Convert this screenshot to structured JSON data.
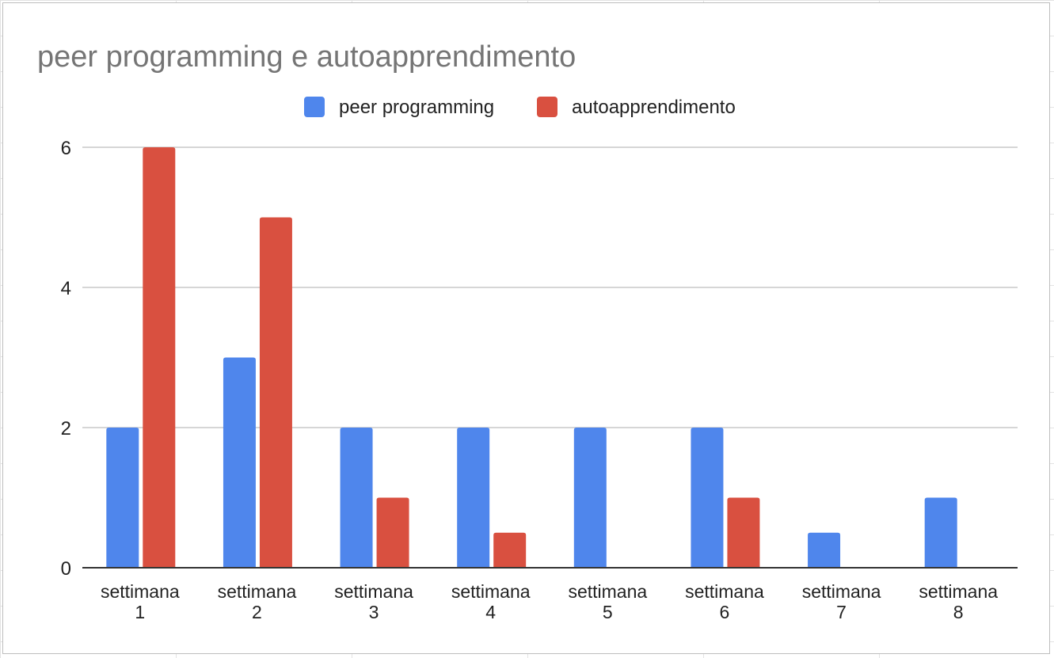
{
  "chart_data": {
    "type": "bar",
    "title": "peer programming e autoapprendimento",
    "xlabel": "",
    "ylabel": "",
    "categories": [
      [
        "settimana",
        "1"
      ],
      [
        "settimana",
        "2"
      ],
      [
        "settimana",
        "3"
      ],
      [
        "settimana",
        "4"
      ],
      [
        "settimana",
        "5"
      ],
      [
        "settimana",
        "6"
      ],
      [
        "settimana",
        "7"
      ],
      [
        "settimana",
        "8"
      ]
    ],
    "series": [
      {
        "name": "peer programming",
        "color": "#4f86ec",
        "values": [
          2,
          3,
          2,
          2,
          2,
          2,
          0.5,
          1
        ]
      },
      {
        "name": "autoapprendimento",
        "color": "#d95040",
        "values": [
          6,
          5,
          1,
          0.5,
          0,
          1,
          0,
          0
        ]
      }
    ],
    "ylim": [
      0,
      6
    ],
    "yticks": [
      0,
      2,
      4,
      6
    ],
    "grid": true,
    "legend_position": "top"
  }
}
